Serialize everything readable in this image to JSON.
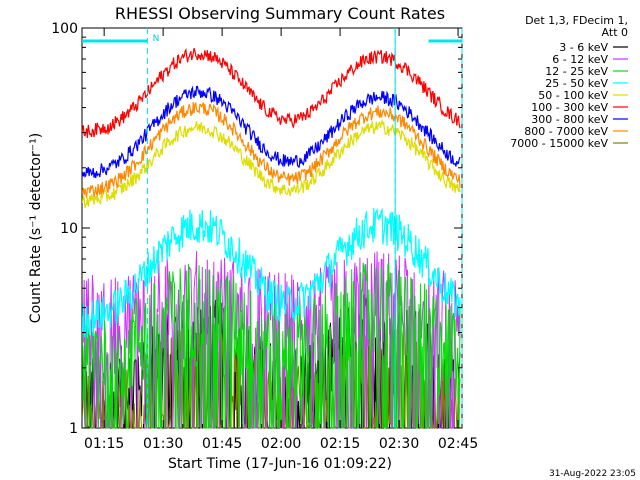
{
  "chart_data": {
    "type": "line",
    "title": "RHESSI Observing Summary Count Rates",
    "xlabel": "Start Time (17-Jun-16 01:09:22)",
    "ylabel": "Count Rate (s⁻¹ detector⁻¹)",
    "yscale": "log",
    "ylim": [
      1,
      100
    ],
    "xlim": [
      "01:09:22",
      "02:46:00"
    ],
    "x_ticks": [
      "01:15",
      "01:30",
      "01:45",
      "02:00",
      "02:15",
      "02:30",
      "02:45"
    ],
    "y_ticks": [
      "1",
      "10",
      "100"
    ],
    "legend_header": [
      "Det 1,3, FDecim 1,",
      "Att 0"
    ],
    "legend_placement": "right",
    "annotation_n": "N",
    "night_intervals": [
      [
        "01:09:22",
        "01:26:00"
      ],
      [
        "02:37:30",
        "02:46:00"
      ]
    ],
    "saa_marks": [
      "01:26:00",
      "02:29:00",
      "02:46:00"
    ],
    "timestamp": "31-Aug-2022 23:05",
    "series": [
      {
        "name": "3 - 6 keV",
        "color": "#000000",
        "base": 1.5,
        "peaks": [
          3.0,
          3.2
        ],
        "noise": "high"
      },
      {
        "name": "6 - 12 keV",
        "color": "#cc33ff",
        "base": 3.8,
        "peaks": [
          5.0,
          5.0
        ],
        "noise": "high"
      },
      {
        "name": "12 - 25 keV",
        "color": "#00e000",
        "base": 2.5,
        "peaks": [
          4.5,
          4.5
        ],
        "noise": "high"
      },
      {
        "name": "25 - 50 keV",
        "color": "#00ffff",
        "base": 3.5,
        "peaks": [
          10.5,
          10.5
        ],
        "noise": "medium"
      },
      {
        "name": "50 - 100 keV",
        "color": "#dddd00",
        "base": 13.5,
        "peaks": [
          32,
          32
        ],
        "noise": "low"
      },
      {
        "name": "100 - 300 keV",
        "color": "#ff0000",
        "base": 30,
        "peaks": [
          75,
          72
        ],
        "noise": "low"
      },
      {
        "name": "300 - 800 keV",
        "color": "#0000ff",
        "base": 18.5,
        "peaks": [
          48,
          45
        ],
        "noise": "low"
      },
      {
        "name": "800 - 7000 keV",
        "color": "#ff8800",
        "base": 15,
        "peaks": [
          40,
          38
        ],
        "noise": "low"
      },
      {
        "name": "7000 - 15000 keV",
        "color": "#808000",
        "base": 1.2,
        "peaks": [
          2.2,
          2.2
        ],
        "noise": "high"
      }
    ]
  }
}
